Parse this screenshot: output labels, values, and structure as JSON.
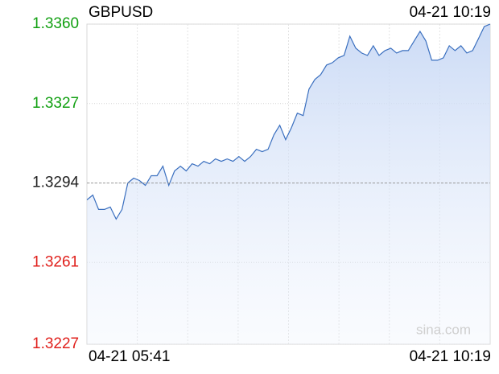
{
  "chart_data": {
    "type": "line",
    "title": "GBPUSD",
    "timestamp": "04-21 10:19",
    "x_start_label": "04-21 05:41",
    "x_end_label": "04-21 10:19",
    "watermark": "sina.com",
    "color": "#3a6fbf",
    "reference_line": 1.3294,
    "ylim": [
      1.3227,
      1.336
    ],
    "yticks": [
      {
        "value": 1.336,
        "label": "1.3360"
      },
      1.3327,
      1.3294,
      1.3261,
      1.3227
    ],
    "ytick_colors": [
      "#12a012",
      "#12a012",
      "#222222",
      "#e0201c",
      "#e0201c"
    ],
    "grid": true,
    "values": [
      1.3287,
      1.3289,
      1.3283,
      1.3283,
      1.3284,
      1.3279,
      1.3283,
      1.3294,
      1.3296,
      1.3295,
      1.3293,
      1.3297,
      1.3297,
      1.3301,
      1.3293,
      1.3299,
      1.3301,
      1.3299,
      1.3302,
      1.3301,
      1.3303,
      1.3302,
      1.3304,
      1.3303,
      1.3304,
      1.3303,
      1.3305,
      1.3303,
      1.3305,
      1.3308,
      1.3307,
      1.3308,
      1.3314,
      1.3318,
      1.3312,
      1.3317,
      1.3323,
      1.3322,
      1.3333,
      1.3337,
      1.3339,
      1.3343,
      1.3344,
      1.3346,
      1.3347,
      1.3355,
      1.335,
      1.3348,
      1.3347,
      1.3351,
      1.3347,
      1.3349,
      1.335,
      1.3348,
      1.3349,
      1.3349,
      1.3353,
      1.3357,
      1.3353,
      1.3345,
      1.3345,
      1.3346,
      1.3351,
      1.3349,
      1.3351,
      1.3348,
      1.3349,
      1.3354,
      1.3359,
      1.336
    ]
  }
}
